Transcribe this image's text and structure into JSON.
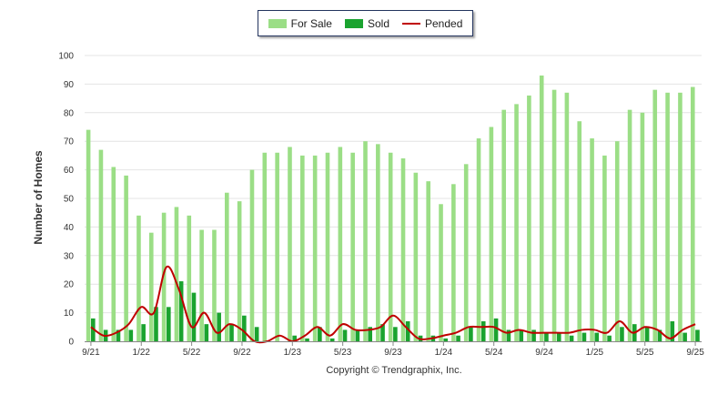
{
  "chart_data": {
    "type": "bar",
    "ylabel": "Number of Homes",
    "ylim": [
      0,
      100
    ],
    "yticks": [
      0,
      10,
      20,
      30,
      40,
      50,
      60,
      70,
      80,
      90,
      100
    ],
    "xtick_labels": [
      "9/21",
      "1/22",
      "5/22",
      "9/22",
      "1/23",
      "5/23",
      "9/23",
      "1/24",
      "5/24",
      "9/24",
      "1/25",
      "5/25",
      "9/25"
    ],
    "grid": "horizontal",
    "legend_position": "top",
    "categories": [
      "9/21",
      "10/21",
      "11/21",
      "12/21",
      "1/22",
      "2/22",
      "3/22",
      "4/22",
      "5/22",
      "6/22",
      "7/22",
      "8/22",
      "9/22",
      "10/22",
      "11/22",
      "12/22",
      "1/23",
      "2/23",
      "3/23",
      "4/23",
      "5/23",
      "6/23",
      "7/23",
      "8/23",
      "9/23",
      "10/23",
      "11/23",
      "12/23",
      "1/24",
      "2/24",
      "3/24",
      "4/24",
      "5/24",
      "6/24",
      "7/24",
      "8/24",
      "9/24",
      "10/24",
      "11/24",
      "12/24",
      "1/25",
      "2/25",
      "3/25",
      "4/25",
      "5/25",
      "6/25",
      "7/25",
      "8/25",
      "9/25"
    ],
    "series": [
      {
        "name": "For Sale",
        "kind": "bar",
        "color": "#9bde86",
        "values": [
          74,
          67,
          61,
          58,
          44,
          38,
          45,
          47,
          44,
          39,
          39,
          52,
          49,
          60,
          66,
          66,
          68,
          65,
          65,
          66,
          68,
          66,
          70,
          69,
          66,
          64,
          59,
          56,
          48,
          55,
          62,
          71,
          75,
          81,
          83,
          86,
          93,
          88,
          87,
          77,
          71,
          65,
          70,
          81,
          80,
          88,
          87,
          87,
          89
        ]
      },
      {
        "name": "Sold",
        "kind": "bar",
        "color": "#1aa32f",
        "values": [
          8,
          4,
          4,
          4,
          6,
          12,
          12,
          21,
          17,
          6,
          10,
          6,
          9,
          5,
          0,
          0,
          2,
          1,
          5,
          1,
          4,
          4,
          5,
          6,
          5,
          7,
          2,
          2,
          1,
          2,
          5,
          7,
          8,
          4,
          4,
          4,
          3,
          3,
          2,
          3,
          3,
          2,
          5,
          6,
          5,
          4,
          7,
          3,
          4
        ]
      },
      {
        "name": "Pended",
        "kind": "line",
        "color": "#c00000",
        "values": [
          5,
          2,
          3,
          6,
          12,
          10,
          26,
          18,
          5,
          10,
          3,
          6,
          4,
          0,
          0,
          2,
          0,
          2,
          5,
          2,
          6,
          4,
          4,
          5,
          9,
          5,
          1,
          1,
          2,
          3,
          5,
          5,
          5,
          3,
          4,
          3,
          3,
          3,
          3,
          4,
          4,
          3,
          7,
          3,
          5,
          4,
          1,
          4,
          6
        ]
      }
    ]
  },
  "legend": {
    "for_sale_label": "For Sale",
    "sold_label": "Sold",
    "pended_label": "Pended"
  },
  "footer": {
    "copyright": "Copyright © Trendgraphix, Inc."
  }
}
